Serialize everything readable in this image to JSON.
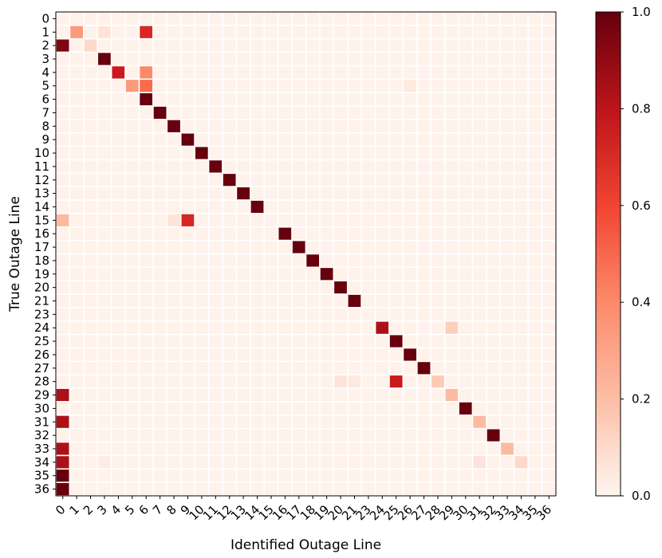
{
  "chart_data": {
    "type": "heatmap",
    "title": "",
    "xlabel": "Identified Outage Line",
    "ylabel": "True Outage Line",
    "x_tick_labels": [
      "0",
      "1",
      "2",
      "3",
      "4",
      "5",
      "6",
      "7",
      "8",
      "9",
      "10",
      "11",
      "12",
      "13",
      "14",
      "15",
      "16",
      "17",
      "18",
      "19",
      "20",
      "21",
      "23",
      "24",
      "25",
      "26",
      "27",
      "28",
      "29",
      "30",
      "31",
      "32",
      "33",
      "34",
      "35",
      "36"
    ],
    "y_tick_labels": [
      "0",
      "1",
      "2",
      "3",
      "4",
      "5",
      "6",
      "7",
      "8",
      "9",
      "10",
      "11",
      "12",
      "13",
      "14",
      "15",
      "16",
      "17",
      "18",
      "19",
      "20",
      "21",
      "23",
      "24",
      "25",
      "26",
      "27",
      "28",
      "29",
      "30",
      "31",
      "32",
      "33",
      "34",
      "35",
      "36"
    ],
    "colorbar": {
      "min": 0.0,
      "max": 1.0,
      "ticks": [
        "0.0",
        "0.2",
        "0.4",
        "0.6",
        "0.8",
        "1.0"
      ],
      "colormap": "Reds"
    },
    "base_value": 0.02,
    "cells": [
      {
        "row": 1,
        "col": 1,
        "value": 0.35
      },
      {
        "row": 1,
        "col": 3,
        "value": 0.1
      },
      {
        "row": 1,
        "col": 6,
        "value": 0.7
      },
      {
        "row": 2,
        "col": 0,
        "value": 0.95
      },
      {
        "row": 2,
        "col": 2,
        "value": 0.15
      },
      {
        "row": 3,
        "col": 3,
        "value": 1.0
      },
      {
        "row": 4,
        "col": 4,
        "value": 0.75
      },
      {
        "row": 4,
        "col": 6,
        "value": 0.4
      },
      {
        "row": 5,
        "col": 5,
        "value": 0.35
      },
      {
        "row": 5,
        "col": 6,
        "value": 0.5
      },
      {
        "row": 5,
        "col": 25,
        "value": 0.07
      },
      {
        "row": 6,
        "col": 6,
        "value": 1.0
      },
      {
        "row": 7,
        "col": 7,
        "value": 1.0
      },
      {
        "row": 8,
        "col": 8,
        "value": 1.0
      },
      {
        "row": 9,
        "col": 9,
        "value": 1.0
      },
      {
        "row": 10,
        "col": 10,
        "value": 1.0
      },
      {
        "row": 11,
        "col": 11,
        "value": 1.0
      },
      {
        "row": 12,
        "col": 12,
        "value": 1.0
      },
      {
        "row": 13,
        "col": 13,
        "value": 1.0
      },
      {
        "row": 14,
        "col": 14,
        "value": 1.0
      },
      {
        "row": 15,
        "col": 0,
        "value": 0.25
      },
      {
        "row": 15,
        "col": 8,
        "value": 0.1
      },
      {
        "row": 15,
        "col": 9,
        "value": 0.7
      },
      {
        "row": 16,
        "col": 16,
        "value": 1.0
      },
      {
        "row": 17,
        "col": 17,
        "value": 1.0
      },
      {
        "row": 18,
        "col": 18,
        "value": 1.0
      },
      {
        "row": 19,
        "col": 19,
        "value": 1.0
      },
      {
        "row": 20,
        "col": 20,
        "value": 1.0
      },
      {
        "row": 21,
        "col": 21,
        "value": 1.0
      },
      {
        "row": 23,
        "col": 23,
        "value": 0.85
      },
      {
        "row": 23,
        "col": 28,
        "value": 0.18
      },
      {
        "row": 24,
        "col": 24,
        "value": 1.0
      },
      {
        "row": 25,
        "col": 25,
        "value": 1.0
      },
      {
        "row": 26,
        "col": 26,
        "value": 1.0
      },
      {
        "row": 27,
        "col": 20,
        "value": 0.1
      },
      {
        "row": 27,
        "col": 21,
        "value": 0.07
      },
      {
        "row": 27,
        "col": 24,
        "value": 0.75
      },
      {
        "row": 27,
        "col": 27,
        "value": 0.2
      },
      {
        "row": 28,
        "col": 0,
        "value": 0.85
      },
      {
        "row": 28,
        "col": 28,
        "value": 0.25
      },
      {
        "row": 29,
        "col": 29,
        "value": 1.0
      },
      {
        "row": 30,
        "col": 0,
        "value": 0.85
      },
      {
        "row": 30,
        "col": 30,
        "value": 0.25
      },
      {
        "row": 31,
        "col": 31,
        "value": 1.0
      },
      {
        "row": 32,
        "col": 0,
        "value": 0.85
      },
      {
        "row": 32,
        "col": 32,
        "value": 0.25
      },
      {
        "row": 33,
        "col": 0,
        "value": 0.85
      },
      {
        "row": 33,
        "col": 3,
        "value": 0.06
      },
      {
        "row": 33,
        "col": 30,
        "value": 0.1
      },
      {
        "row": 33,
        "col": 33,
        "value": 0.15
      },
      {
        "row": 34,
        "col": 0,
        "value": 1.0
      },
      {
        "row": 35,
        "col": 0,
        "value": 1.0
      },
      {
        "row": 36,
        "col": 0,
        "value": 1.0
      }
    ]
  }
}
